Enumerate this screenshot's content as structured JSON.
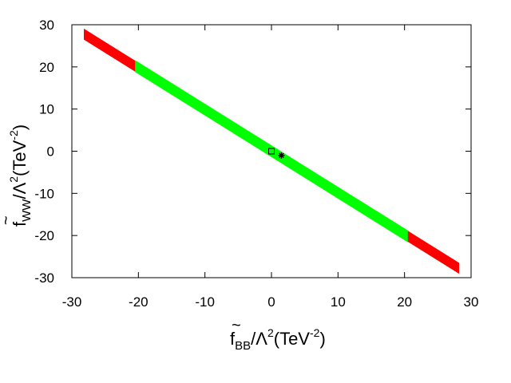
{
  "chart_data": {
    "type": "area",
    "xlabel": {
      "tilde": "~",
      "main": "f",
      "sub": "BB",
      "rest": "/Λ",
      "sup": "2",
      "unit": "(TeV",
      "unit_sup": "-2",
      "close": ")"
    },
    "ylabel": {
      "tilde": "~",
      "main": "f",
      "sub": "WW",
      "rest": "/Λ",
      "sup": "2",
      "unit": "(TeV",
      "unit_sup": "-2",
      "close": ")"
    },
    "xlim": [
      -30,
      30
    ],
    "ylim": [
      -30,
      30
    ],
    "xticks": [
      "-30",
      "-20",
      "-10",
      "0",
      "10",
      "20",
      "30"
    ],
    "yticks": [
      "-30",
      "-20",
      "-10",
      "0",
      "10",
      "20",
      "30"
    ],
    "grid": false,
    "series": [
      {
        "color": "#ff0000",
        "band": {
          "x_start": -28.2,
          "x_end": 28.2,
          "slope": -0.985,
          "intercept": 0.0,
          "half_width_y": 1.3
        }
      },
      {
        "color": "#00ff00",
        "band": {
          "x_start": -20.5,
          "x_end": 20.5,
          "slope": -0.985,
          "intercept": 0.0,
          "half_width_y": 1.4
        }
      }
    ],
    "markers": [
      {
        "shape": "square",
        "x": 0,
        "y": 0,
        "color": "#000000"
      },
      {
        "shape": "star",
        "x": 1.5,
        "y": -1.0,
        "color": "#000000"
      }
    ]
  }
}
